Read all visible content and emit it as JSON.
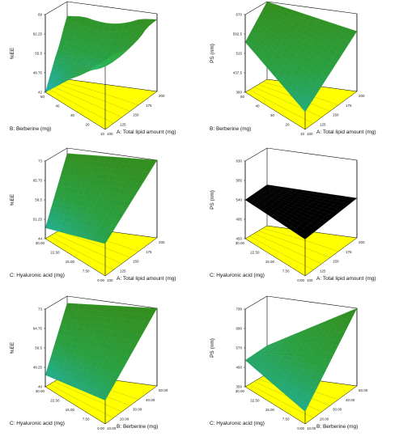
{
  "colors": {
    "floor": "#ffff00",
    "surface_high": "#3a9a1e",
    "surface_mid": "#2fb04a",
    "surface_low": "#22c6c8",
    "contour": "#b5b500",
    "flat_surface": "#000000"
  },
  "chart_data": [
    {
      "type": "surface3d",
      "id": "ee-lipid-berberine",
      "zlabel": "%EE",
      "zticks": [
        "69",
        "62.25",
        "55.5",
        "48.75",
        "42"
      ],
      "xlabel": "A: Total lipid amount (mg)",
      "xticks": [
        "100",
        "125",
        "150",
        "175",
        "200"
      ],
      "ylabel": "B: Berberine (mg)",
      "yticks": [
        "10",
        "20",
        "30",
        "40",
        "50"
      ],
      "shape": "valley",
      "x_range": [
        100,
        200
      ],
      "y_range": [
        10,
        50
      ],
      "z_range": [
        42,
        69
      ],
      "corner_z": {
        "x_min_y_min": 42,
        "x_max_y_min": 66,
        "x_min_y_max": 64,
        "x_max_y_max": 67,
        "center": 52
      }
    },
    {
      "type": "surface3d",
      "id": "ps-lipid-berberine",
      "zlabel": "PS (nm)",
      "zticks": [
        "670",
        "592.5",
        "515",
        "437.5",
        "360"
      ],
      "xlabel": "A: Total lipid amount (mg)",
      "xticks": [
        "100",
        "125",
        "150",
        "175",
        "200"
      ],
      "ylabel": "B: Berberine (mg)",
      "yticks": [
        "10",
        "20",
        "30",
        "40",
        "50"
      ],
      "shape": "plane",
      "x_range": [
        100,
        200
      ],
      "y_range": [
        10,
        50
      ],
      "z_range": [
        360,
        670
      ],
      "corner_z": {
        "x_min_y_min": 560,
        "x_max_y_min": 430,
        "x_min_y_max": 670,
        "x_max_y_max": 600
      }
    },
    {
      "type": "surface3d",
      "id": "ee-lipid-hyaluronic",
      "zlabel": "%EE",
      "zticks": [
        "73",
        "65.75",
        "58.5",
        "51.25",
        "44"
      ],
      "xlabel": "A: Total lipid amount (mg)",
      "xticks": [
        "100",
        "125",
        "150",
        "175",
        "200"
      ],
      "ylabel": "C: Hyaluronic acid (mg)",
      "yticks": [
        "0.00",
        "7.50",
        "15.00",
        "22.50",
        "30.00"
      ],
      "shape": "plane",
      "x_range": [
        100,
        200
      ],
      "y_range": [
        0,
        30
      ],
      "z_range": [
        44,
        73
      ],
      "corner_z": {
        "x_min_y_min": 48,
        "x_max_y_min": 56,
        "x_min_y_max": 71,
        "x_max_y_max": 73
      }
    },
    {
      "type": "surface3d",
      "id": "ps-lipid-hyaluronic",
      "zlabel": "PS (nm)",
      "zticks": [
        "630",
        "585",
        "540",
        "495",
        "450"
      ],
      "xlabel": "A: Total lipid amount (mg)",
      "xticks": [
        "100",
        "125",
        "150",
        "175",
        "200"
      ],
      "ylabel": "C: Hyaluronic acid (mg)",
      "yticks": [
        "0.00",
        "7.50",
        "15.00",
        "22.50",
        "30.00"
      ],
      "shape": "flat",
      "x_range": [
        100,
        200
      ],
      "y_range": [
        0,
        30
      ],
      "z_range": [
        450,
        630
      ],
      "corner_z": {
        "x_min_y_min": 540,
        "x_max_y_min": 535,
        "x_min_y_max": 545,
        "x_max_y_max": 542
      }
    },
    {
      "type": "surface3d",
      "id": "ee-berberine-hyaluronic",
      "zlabel": "%EE",
      "zticks": [
        "73",
        "64.75",
        "56.5",
        "48.25",
        "40"
      ],
      "xlabel": "B: Berberine (mg)",
      "xticks": [
        "10.00",
        "20.00",
        "30.00",
        "40.00",
        "50.00"
      ],
      "ylabel": "C: Hyaluronic acid (mg)",
      "yticks": [
        "0.00",
        "7.50",
        "15.00",
        "22.50",
        "30.00"
      ],
      "shape": "plane",
      "x_range": [
        10,
        50
      ],
      "y_range": [
        0,
        30
      ],
      "z_range": [
        40,
        73
      ],
      "corner_z": {
        "x_min_y_min": 45,
        "x_max_y_min": 50,
        "x_min_y_max": 70,
        "x_max_y_max": 73
      }
    },
    {
      "type": "surface3d",
      "id": "ps-berberine-hyaluronic",
      "zlabel": "PS (nm)",
      "zticks": [
        "790",
        "680",
        "570",
        "460",
        "350"
      ],
      "xlabel": "B: Berberine (mg)",
      "xticks": [
        "10.00",
        "20.00",
        "30.00",
        "40.00",
        "50.00"
      ],
      "ylabel": "C: Hyaluronic acid (mg)",
      "yticks": [
        "0.00",
        "7.50",
        "15.00",
        "22.50",
        "30.00"
      ],
      "shape": "plane",
      "x_range": [
        10,
        50
      ],
      "y_range": [
        0,
        30
      ],
      "z_range": [
        350,
        790
      ],
      "corner_z": {
        "x_min_y_min": 500,
        "x_max_y_min": 420,
        "x_min_y_max": 510,
        "x_max_y_max": 790
      }
    }
  ]
}
